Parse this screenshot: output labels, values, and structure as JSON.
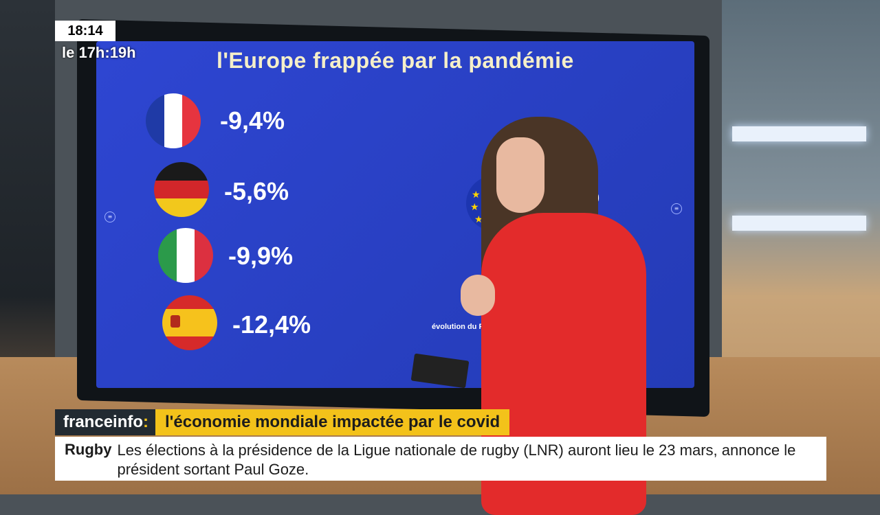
{
  "overlay": {
    "clock": "18:14",
    "next_program": "le 17h:19h"
  },
  "screen": {
    "title": "l'Europe frappée par la pandémie",
    "countries": [
      {
        "flag": "france-flag-icon",
        "change": "-9,4%"
      },
      {
        "flag": "germany-flag-icon",
        "change": "-5,6%"
      },
      {
        "flag": "italy-flag-icon",
        "change": "-9,9%"
      },
      {
        "flag": "spain-flag-icon",
        "change": "-12,4%"
      }
    ],
    "eu": {
      "flag": "eu-flag-icon",
      "change_partial": "%"
    },
    "caption_partial": "évolution du PIB"
  },
  "lower_third": {
    "brand": "franceinfo",
    "brand_colon": ":",
    "headline": "l'économie mondiale impactée par le covid"
  },
  "ticker": {
    "category": "Rugby",
    "text": "Les élections à la présidence de la Ligue nationale de rugby (LNR) auront lieu le 23 mars, annonce le président sortant Paul Goze."
  },
  "colors": {
    "screen_blue": "#2a40c8",
    "brand_yellow": "#f3c21a",
    "brand_dark": "#222a31",
    "sweater_red": "#e32b2b"
  }
}
